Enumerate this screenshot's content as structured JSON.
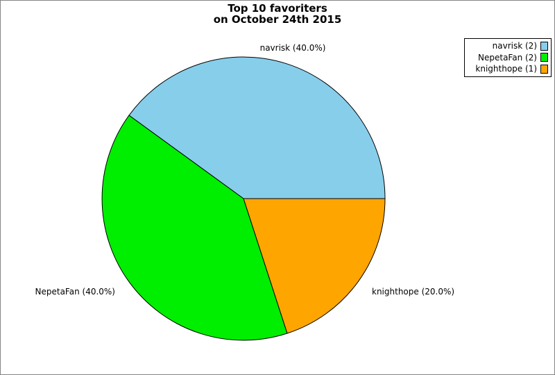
{
  "title": {
    "line1": "Top 10 favoriters",
    "line2": "on October 24th 2015"
  },
  "chart_data": {
    "type": "pie",
    "title": "Top 10 favoriters on October 24th 2015",
    "start_angle_deg": 0,
    "direction": "counterclockwise",
    "edge_color": "#000000",
    "legend_position": "upper-right",
    "total": 5,
    "slices": [
      {
        "name": "navrisk",
        "value": 2,
        "percent": 40.0,
        "slice_label": "navrisk (40.0%)",
        "legend_label": "navrisk (2)",
        "color": "#87CEEB"
      },
      {
        "name": "NepetaFan",
        "value": 2,
        "percent": 40.0,
        "slice_label": "NepetaFan (40.0%)",
        "legend_label": "NepetaFan (2)",
        "color": "#00EE00"
      },
      {
        "name": "knighthope",
        "value": 1,
        "percent": 20.0,
        "slice_label": "knighthope (20.0%)",
        "legend_label": "knighthope (1)",
        "color": "#FFA500"
      }
    ]
  }
}
